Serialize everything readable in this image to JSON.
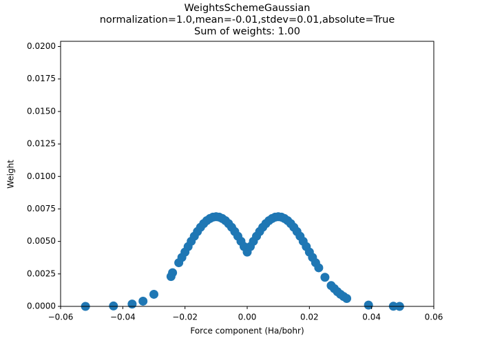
{
  "chart_data": {
    "type": "scatter",
    "title": [
      "WeightsSchemeGaussian",
      "normalization=1.0,mean=-0.01,stdev=0.01,absolute=True",
      "Sum of weights: 1.00"
    ],
    "x_label": "Force component (Ha/bohr)",
    "y_label": "Weight",
    "color": "#1f77b4",
    "xlim": [
      -0.06,
      0.06
    ],
    "ylim": [
      0,
      0.0204
    ],
    "xticks": [
      {
        "value": -0.06,
        "label": "−0.06"
      },
      {
        "value": -0.04,
        "label": "−0.04"
      },
      {
        "value": -0.02,
        "label": "−0.02"
      },
      {
        "value": 0,
        "label": "0.00"
      },
      0.02,
      0.04,
      0.06
    ],
    "yticks": [
      {
        "value": 0,
        "label": "0.0000"
      },
      0.0025,
      {
        "value": 0.005,
        "label": "0.0050"
      },
      0.0075,
      {
        "value": 0.01,
        "label": "0.0100"
      },
      0.0125,
      {
        "value": 0.015,
        "label": "0.0150"
      },
      0.0175,
      {
        "value": 0.02,
        "label": "0.0200"
      }
    ],
    "x": [
      -0.052,
      -0.043,
      -0.037,
      -0.0335,
      -0.03,
      -0.0245,
      -0.024,
      -0.022,
      -0.021,
      -0.02,
      -0.019,
      -0.018,
      -0.017,
      -0.016,
      -0.015,
      -0.014,
      -0.013,
      -0.012,
      -0.011,
      -0.01,
      -0.009,
      -0.008,
      -0.007,
      -0.006,
      -0.005,
      -0.004,
      -0.003,
      -0.002,
      -0.001,
      0,
      0.001,
      0.002,
      0.003,
      0.004,
      0.005,
      0.006,
      0.007,
      0.008,
      0.009,
      0.01,
      0.011,
      0.012,
      0.013,
      0.014,
      0.015,
      0.016,
      0.017,
      0.018,
      0.019,
      0.02,
      0.021,
      0.022,
      0.023,
      0.025,
      0.027,
      0.028,
      0.029,
      0.03,
      0.031,
      0.032,
      0.039,
      0.047,
      0.049
    ],
    "values": [
      0,
      3e-05,
      0.00018,
      0.0004,
      0.00093,
      0.0023,
      0.00259,
      0.00336,
      0.00377,
      0.00418,
      0.0046,
      0.00501,
      0.0054,
      0.00576,
      0.00609,
      0.00637,
      0.0066,
      0.00676,
      0.00687,
      0.0069,
      0.00687,
      0.00676,
      0.0066,
      0.00637,
      0.00609,
      0.00576,
      0.0054,
      0.00501,
      0.0046,
      0.00418,
      0.0046,
      0.00501,
      0.0054,
      0.00576,
      0.00609,
      0.00637,
      0.0066,
      0.00676,
      0.00687,
      0.0069,
      0.00687,
      0.00676,
      0.0066,
      0.00637,
      0.00609,
      0.00576,
      0.0054,
      0.00501,
      0.0046,
      0.00418,
      0.00377,
      0.00336,
      0.00297,
      0.00224,
      0.0016,
      0.00137,
      0.00113,
      0.00093,
      0.00076,
      0.00061,
      0.0001,
      1e-05,
      0
    ]
  }
}
